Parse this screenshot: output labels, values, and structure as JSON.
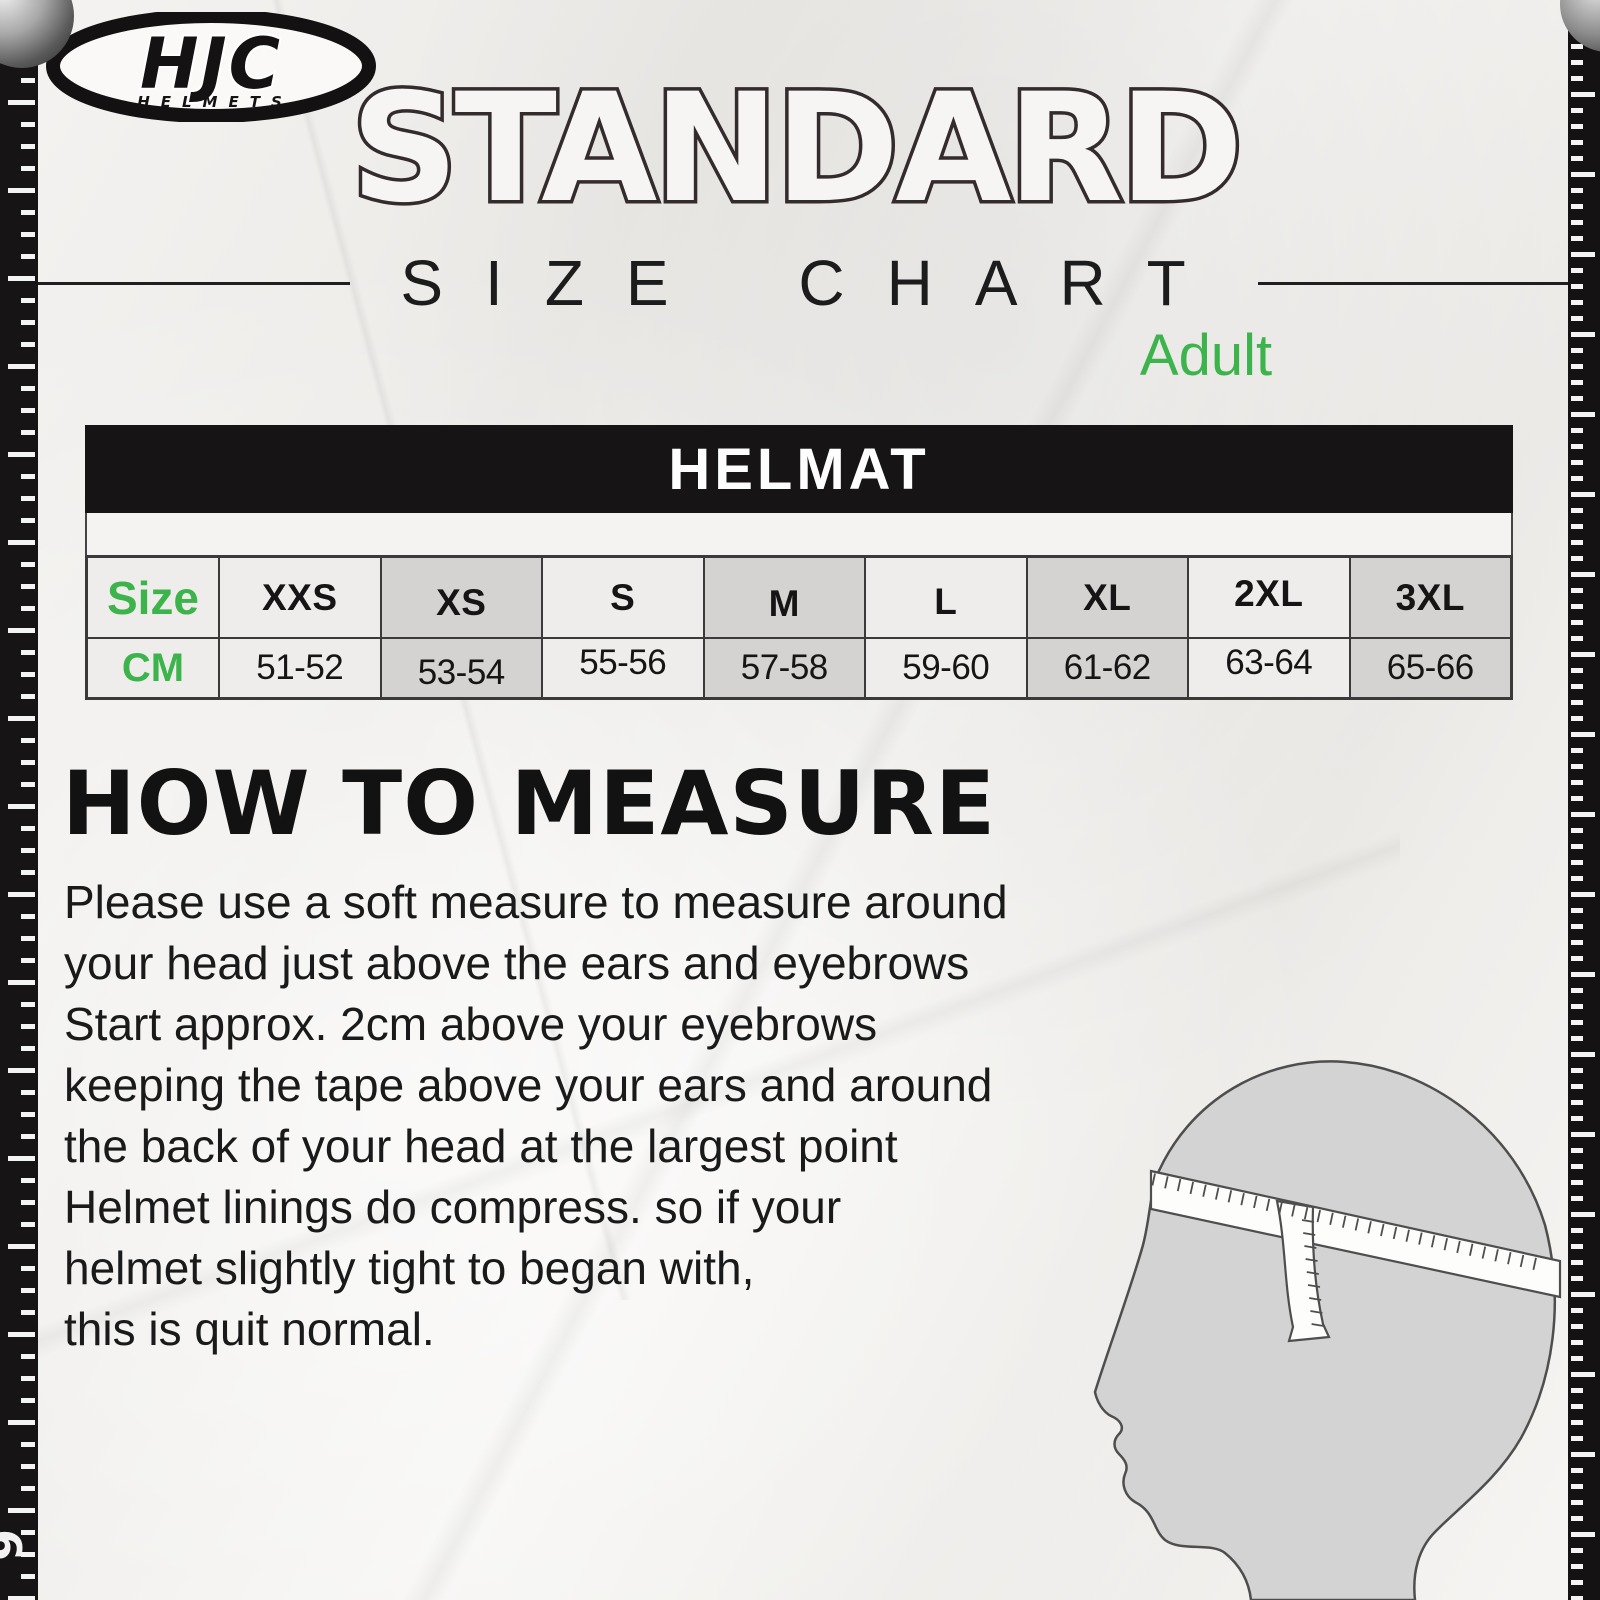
{
  "brand": {
    "name": "HJC",
    "tagline": "HELMETS"
  },
  "header": {
    "title": "STANDARD",
    "subtitle": "SIZE CHART",
    "audience_label": "Adult"
  },
  "table": {
    "title": "HELMAT",
    "size_row_label": "Size",
    "cm_row_label": "CM",
    "sizes": [
      "XXS",
      "XS",
      "S",
      "M",
      "L",
      "XL",
      "2XL",
      "3XL"
    ],
    "cm_values": [
      "51-52",
      "53-54",
      "55-56",
      "57-58",
      "59-60",
      "61-62",
      "63-64",
      "65-66"
    ]
  },
  "how_to_measure": {
    "heading": "HOW TO MEASURE",
    "lines": [
      "Please use a soft measure to measure around",
      "your head just above the ears and eyebrows",
      "Start approx. 2cm above your eyebrows",
      "keeping the tape above your ears and around",
      "the back of your head at the largest point",
      "Helmet linings do compress. so if your",
      "helmet slightly tight to began with,",
      "this is quit normal."
    ]
  },
  "ruler": {
    "number": "6"
  },
  "colors": {
    "accent_green": "#3cb44b",
    "bar_black": "#171415",
    "cell_gray": "#d5d3d1",
    "cell_light": "#efedeb"
  },
  "chart_data": {
    "type": "table",
    "title": "HELMAT",
    "columns": [
      "Size",
      "XXS",
      "XS",
      "S",
      "M",
      "L",
      "XL",
      "2XL",
      "3XL"
    ],
    "rows": [
      [
        "CM",
        "51-52",
        "53-54",
        "55-56",
        "57-58",
        "59-60",
        "61-62",
        "63-64",
        "65-66"
      ]
    ]
  }
}
